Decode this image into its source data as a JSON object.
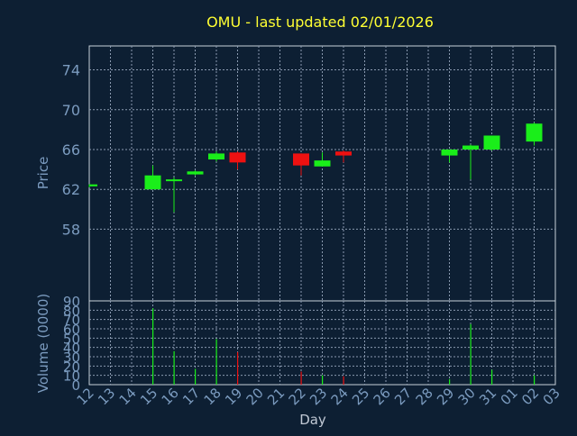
{
  "chart_data": [
    {
      "type": "candlestick",
      "title": "OMU - last updated 02/01/2026",
      "xlabel": "",
      "ylabel": "Price",
      "ylim": [
        50.8,
        76.4
      ],
      "yticks": [
        58,
        62,
        66,
        70,
        74
      ],
      "grid": true,
      "categories": [
        "12",
        "13",
        "14",
        "15",
        "16",
        "17",
        "18",
        "19",
        "20",
        "21",
        "22",
        "23",
        "24",
        "25",
        "26",
        "27",
        "28",
        "29",
        "30",
        "31",
        "01",
        "02",
        "03"
      ],
      "candles": [
        {
          "day": "12",
          "open": 62.3,
          "close": 62.5,
          "high": 62.5,
          "low": 62.2
        },
        {
          "day": "15",
          "open": 62.0,
          "close": 63.4,
          "high": 64.4,
          "low": 62.0
        },
        {
          "day": "16",
          "open": 62.9,
          "close": 63.0,
          "high": 63.2,
          "low": 59.7
        },
        {
          "day": "17",
          "open": 63.5,
          "close": 63.8,
          "high": 63.9,
          "low": 63.4
        },
        {
          "day": "18",
          "open": 65.0,
          "close": 65.6,
          "high": 65.8,
          "low": 64.8
        },
        {
          "day": "19",
          "open": 65.7,
          "close": 64.7,
          "high": 65.8,
          "low": 64.0
        },
        {
          "day": "22",
          "open": 65.6,
          "close": 64.4,
          "high": 65.6,
          "low": 63.4
        },
        {
          "day": "23",
          "open": 64.3,
          "close": 64.9,
          "high": 65.7,
          "low": 64.3
        },
        {
          "day": "24",
          "open": 65.8,
          "close": 65.4,
          "high": 65.9,
          "low": 64.7
        },
        {
          "day": "29",
          "open": 65.4,
          "close": 66.0,
          "high": 66.0,
          "low": 64.7
        },
        {
          "day": "30",
          "open": 66.0,
          "close": 66.4,
          "high": 66.5,
          "low": 63.0
        },
        {
          "day": "31",
          "open": 66.0,
          "close": 67.4,
          "high": 67.4,
          "low": 65.9
        },
        {
          "day": "02",
          "open": 66.8,
          "close": 68.6,
          "high": 68.7,
          "low": 66.4
        }
      ]
    },
    {
      "type": "bar",
      "xlabel": "Day",
      "ylabel": "Volume (0000)",
      "ylim": [
        0,
        90
      ],
      "yticks": [
        0,
        10,
        20,
        30,
        40,
        50,
        60,
        70,
        80,
        90
      ],
      "grid": true,
      "categories": [
        "12",
        "13",
        "14",
        "15",
        "16",
        "17",
        "18",
        "19",
        "20",
        "21",
        "22",
        "23",
        "24",
        "25",
        "26",
        "27",
        "28",
        "29",
        "30",
        "31",
        "01",
        "02",
        "03"
      ],
      "volumes": [
        {
          "day": "15",
          "value": 82,
          "direction": "up"
        },
        {
          "day": "16",
          "value": 36,
          "direction": "up"
        },
        {
          "day": "17",
          "value": 17,
          "direction": "up"
        },
        {
          "day": "18",
          "value": 49,
          "direction": "up"
        },
        {
          "day": "19",
          "value": 35,
          "direction": "down"
        },
        {
          "day": "22",
          "value": 14,
          "direction": "down"
        },
        {
          "day": "23",
          "value": 10,
          "direction": "up"
        },
        {
          "day": "24",
          "value": 9,
          "direction": "down"
        },
        {
          "day": "29",
          "value": 6,
          "direction": "up"
        },
        {
          "day": "30",
          "value": 65,
          "direction": "up"
        },
        {
          "day": "31",
          "value": 16,
          "direction": "up"
        },
        {
          "day": "02",
          "value": 10,
          "direction": "up"
        }
      ]
    }
  ],
  "colors": {
    "background": "#0d1f33",
    "plot_background": "#0d1f33",
    "axis_text": "#7b9bbf",
    "title": "#ffff33",
    "grid": "#8a9ab0",
    "frame": "#c8d0da",
    "up": "#1aee1a",
    "down": "#ee1111"
  }
}
